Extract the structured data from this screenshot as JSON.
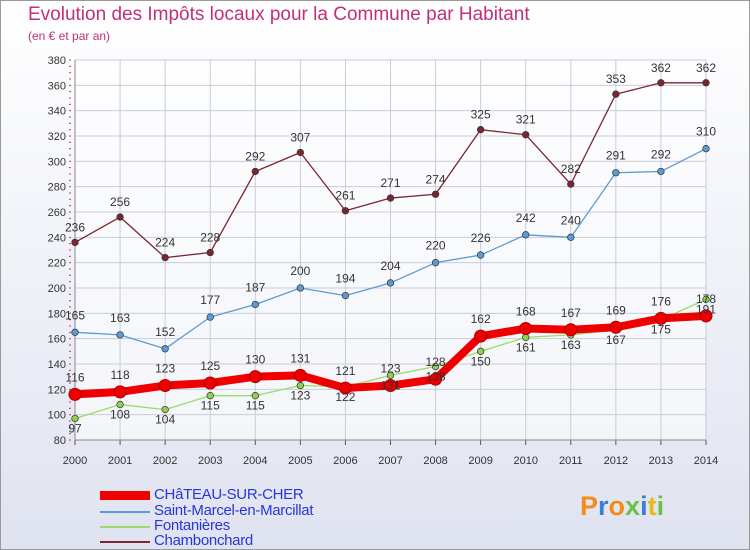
{
  "title": "Evolution des Impôts locaux pour la Commune par Habitant",
  "subtitle": "(en € et par an)",
  "logo_text": "Proxiti",
  "chart_data": {
    "type": "line",
    "title": "Evolution des Impôts locaux pour la Commune par Habitant",
    "subtitle": "(en € et par an)",
    "xlabel": "",
    "ylabel": "",
    "x": [
      "2000",
      "2001",
      "2002",
      "2003",
      "2004",
      "2005",
      "2006",
      "2007",
      "2008",
      "2009",
      "2010",
      "2011",
      "2012",
      "2013",
      "2014"
    ],
    "ylim": [
      80,
      380
    ],
    "yticks": [
      80,
      100,
      120,
      140,
      160,
      180,
      200,
      220,
      240,
      260,
      280,
      300,
      320,
      340,
      360,
      380
    ],
    "grid": true,
    "legend_position": "bottom-left",
    "series": [
      {
        "name": "CHâTEAU-SUR-CHER",
        "color": "#ee0000",
        "values": [
          116,
          118,
          123,
          125,
          130,
          131,
          121,
          123,
          128,
          162,
          168,
          167,
          169,
          176,
          178
        ]
      },
      {
        "name": "Saint-Marcel-en-Marcillat",
        "color": "#5b9bd5",
        "values": [
          165,
          163,
          152,
          177,
          187,
          200,
          194,
          204,
          220,
          226,
          242,
          240,
          291,
          292,
          310
        ]
      },
      {
        "name": "Fontanières",
        "color": "#99dd66",
        "values": [
          97,
          108,
          104,
          115,
          115,
          123,
          122,
          131,
          138,
          150,
          161,
          163,
          167,
          175,
          191
        ]
      },
      {
        "name": "Chambonchard",
        "color": "#7a2630",
        "values": [
          236,
          256,
          224,
          228,
          292,
          307,
          261,
          271,
          274,
          325,
          321,
          282,
          353,
          362,
          362
        ]
      }
    ]
  }
}
